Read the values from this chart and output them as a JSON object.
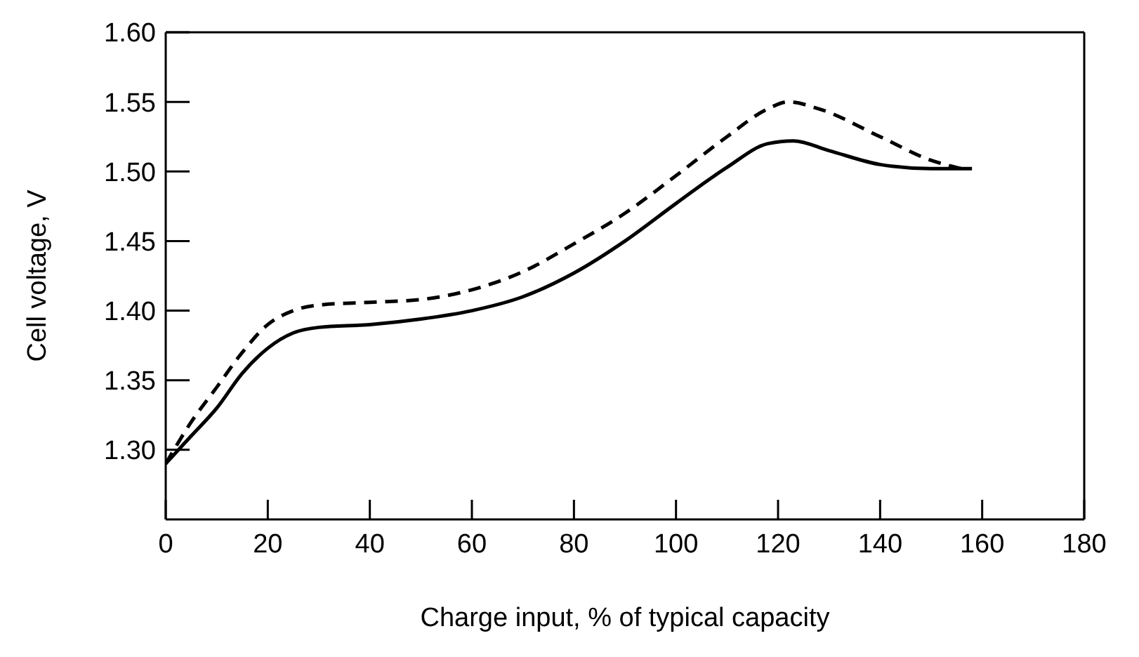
{
  "chart_data": {
    "type": "line",
    "xlabel": "Charge input, % of typical capacity",
    "ylabel": "Cell voltage, V",
    "xlim": [
      0,
      180
    ],
    "xticks": [
      0,
      20,
      40,
      60,
      80,
      100,
      120,
      140,
      160,
      180
    ],
    "ylim": [
      1.25,
      1.6
    ],
    "yticks": [
      {
        "value": 1.3,
        "label": "1.30"
      },
      1.35,
      {
        "value": 1.4,
        "label": "1.40"
      },
      1.45,
      {
        "value": 1.5,
        "label": "1.50"
      },
      1.55,
      {
        "value": 1.6,
        "label": "1.60"
      }
    ],
    "marker": "none",
    "series": [
      {
        "color": "#000000",
        "line_style": "solid",
        "x": [
          0,
          5,
          10,
          15,
          20,
          25,
          30,
          40,
          50,
          60,
          70,
          80,
          90,
          100,
          110,
          118,
          123,
          130,
          140,
          150,
          158
        ],
        "values": [
          1.29,
          1.31,
          1.33,
          1.355,
          1.373,
          1.384,
          1.388,
          1.39,
          1.394,
          1.4,
          1.41,
          1.427,
          1.45,
          1.477,
          1.503,
          1.52,
          1.522,
          1.515,
          1.505,
          1.502,
          1.502
        ]
      },
      {
        "color": "#000000",
        "line_style": "dashed",
        "x": [
          0,
          5,
          10,
          15,
          20,
          25,
          30,
          40,
          50,
          60,
          70,
          80,
          90,
          100,
          110,
          118,
          122,
          128,
          140,
          150,
          156
        ],
        "values": [
          1.29,
          1.32,
          1.345,
          1.37,
          1.39,
          1.4,
          1.404,
          1.406,
          1.408,
          1.415,
          1.428,
          1.448,
          1.47,
          1.497,
          1.525,
          1.545,
          1.55,
          1.545,
          1.525,
          1.508,
          1.502
        ]
      }
    ]
  }
}
